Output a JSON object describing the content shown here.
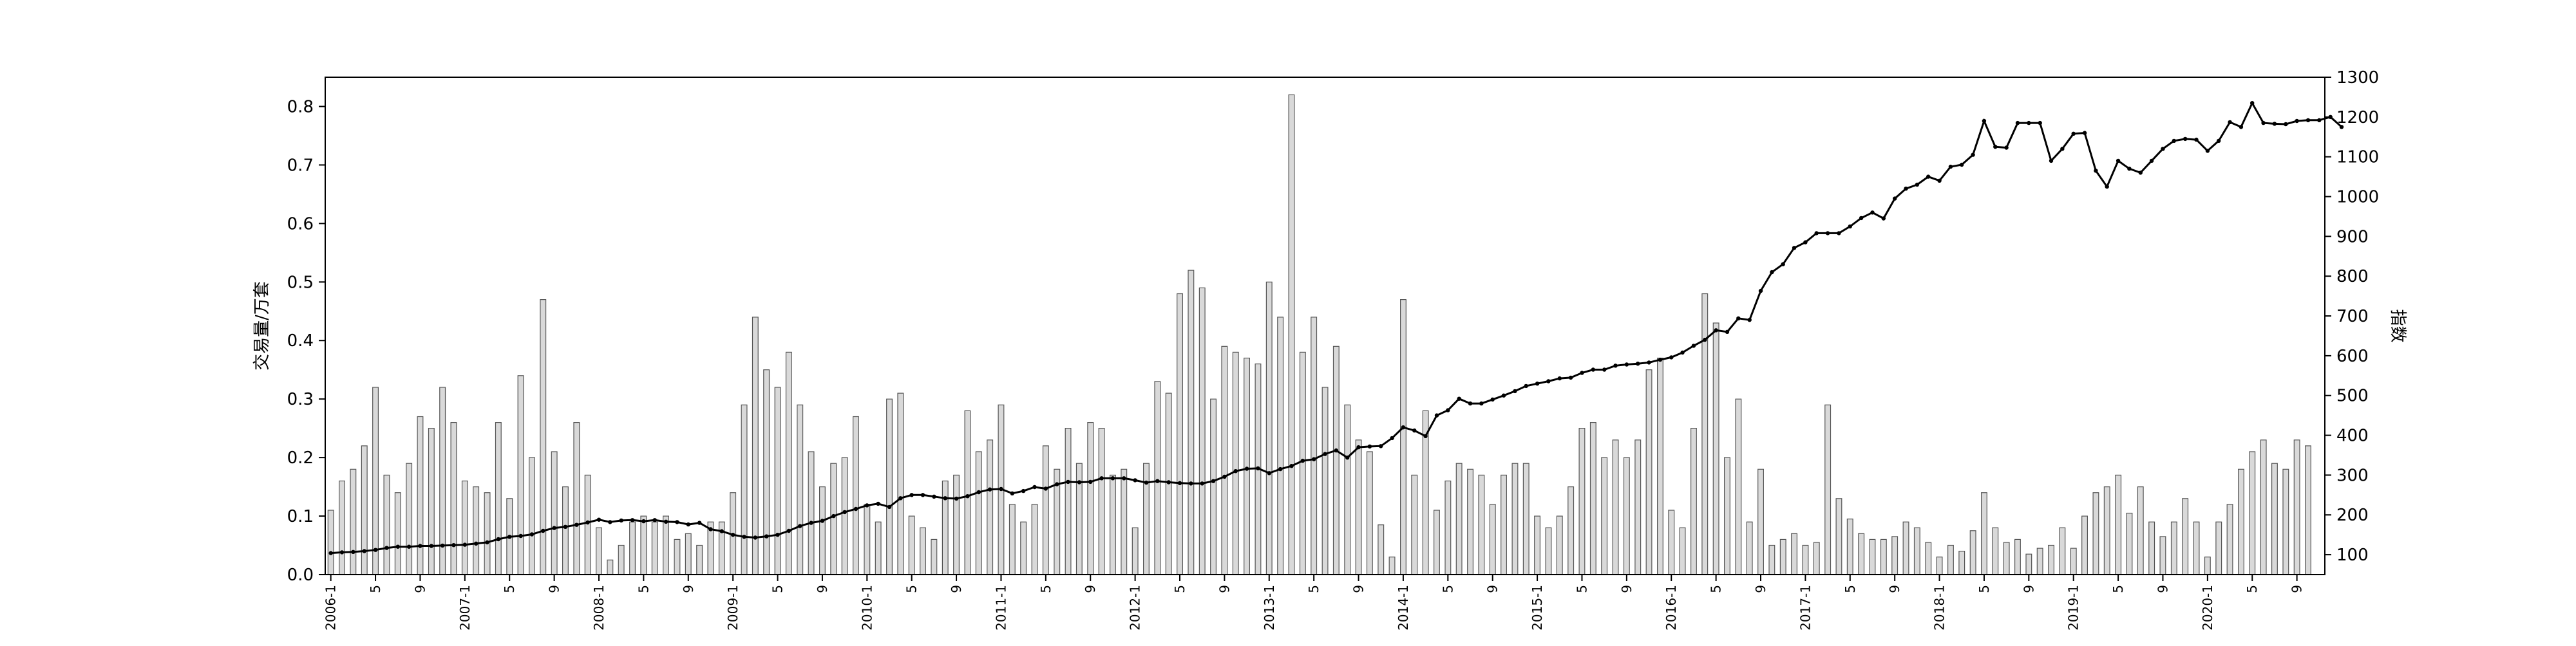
{
  "chart_data": {
    "type": "bar",
    "title": "",
    "ylabel_left": "交易量/万套",
    "ylabel_right": "指数",
    "ylim_left": [
      0,
      0.85
    ],
    "ylim_right": [
      50,
      1300
    ],
    "yticks_left": [
      "0.0",
      "0.1",
      "0.2",
      "0.3",
      "0.4",
      "0.5",
      "0.6",
      "0.7",
      "0.8"
    ],
    "yticks_right": [
      "100",
      "200",
      "300",
      "400",
      "500",
      "600",
      "700",
      "800",
      "900",
      "1000",
      "1100",
      "1200",
      "1300"
    ],
    "years": [
      "2006",
      "2007",
      "2008",
      "2009",
      "2010",
      "2011",
      "2012",
      "2013",
      "2014",
      "2015",
      "2016",
      "2017",
      "2018",
      "2019",
      "2020"
    ],
    "month_ticks": [
      "1",
      "5",
      "9"
    ],
    "series": [
      {
        "kind": "bar",
        "axis": "left",
        "values": [
          0.11,
          0.16,
          0.18,
          0.22,
          0.32,
          0.17,
          0.14,
          0.19,
          0.27,
          0.25,
          0.32,
          0.26,
          0.16,
          0.15,
          0.14,
          0.26,
          0.13,
          0.34,
          0.2,
          0.47,
          0.21,
          0.15,
          0.26,
          0.17,
          0.08,
          0.025,
          0.05,
          0.09,
          0.1,
          0.09,
          0.1,
          0.06,
          0.07,
          0.05,
          0.09,
          0.09,
          0.14,
          0.29,
          0.44,
          0.35,
          0.32,
          0.38,
          0.29,
          0.21,
          0.15,
          0.19,
          0.2,
          0.27,
          0.12,
          0.09,
          0.3,
          0.31,
          0.1,
          0.08,
          0.06,
          0.16,
          0.17,
          0.28,
          0.21,
          0.23,
          0.29,
          0.12,
          0.09,
          0.12,
          0.22,
          0.18,
          0.25,
          0.19,
          0.26,
          0.25,
          0.17,
          0.18,
          0.08,
          0.19,
          0.33,
          0.31,
          0.48,
          0.52,
          0.49,
          0.3,
          0.39,
          0.38,
          0.37,
          0.36,
          0.5,
          0.44,
          0.82,
          0.38,
          0.44,
          0.32,
          0.39,
          0.29,
          0.23,
          0.21,
          0.085,
          0.03,
          0.47,
          0.17,
          0.28,
          0.11,
          0.16,
          0.19,
          0.18,
          0.17,
          0.12,
          0.17,
          0.19,
          0.19,
          0.1,
          0.08,
          0.1,
          0.15,
          0.25,
          0.26,
          0.2,
          0.23,
          0.2,
          0.23,
          0.35,
          0.37,
          0.11,
          0.08,
          0.25,
          0.48,
          0.43,
          0.2,
          0.3,
          0.09,
          0.18,
          0.05,
          0.06,
          0.07,
          0.05,
          0.055,
          0.29,
          0.13,
          0.095,
          0.07,
          0.06,
          0.06,
          0.065,
          0.09,
          0.08,
          0.055,
          0.03,
          0.05,
          0.04,
          0.075,
          0.14,
          0.08,
          0.055,
          0.06,
          0.035,
          0.045,
          0.05,
          0.08,
          0.045,
          0.1,
          0.14,
          0.15,
          0.17,
          0.105,
          0.15,
          0.09,
          0.065,
          0.09,
          0.13,
          0.09,
          0.03,
          0.09,
          0.12,
          0.18,
          0.21,
          0.23,
          0.19,
          0.18,
          0.23,
          0.22
        ]
      },
      {
        "kind": "line",
        "axis": "right",
        "values": [
          104,
          106,
          107,
          109,
          112,
          117,
          120,
          120,
          122,
          122,
          123,
          124,
          125,
          128,
          131,
          139,
          145,
          147,
          151,
          160,
          167,
          170,
          175,
          181,
          188,
          182,
          186,
          187,
          184,
          187,
          183,
          182,
          176,
          180,
          164,
          159,
          150,
          145,
          143,
          146,
          150,
          160,
          172,
          180,
          185,
          197,
          207,
          215,
          224,
          228,
          220,
          242,
          250,
          250,
          246,
          242,
          241,
          247,
          257,
          264,
          265,
          254,
          260,
          270,
          266,
          277,
          283,
          282,
          283,
          292,
          292,
          292,
          287,
          281,
          285,
          282,
          280,
          279,
          279,
          285,
          296,
          310,
          316,
          317,
          305,
          315,
          323,
          336,
          340,
          353,
          362,
          344,
          370,
          372,
          373,
          393,
          420,
          412,
          398,
          450,
          463,
          492,
          480,
          480,
          490,
          500,
          511,
          524,
          530,
          536,
          543,
          545,
          557,
          565,
          565,
          575,
          578,
          580,
          583,
          590,
          596,
          608,
          625,
          640,
          664,
          660,
          694,
          690,
          763,
          810,
          830,
          871,
          885,
          908,
          908,
          908,
          925,
          946,
          960,
          945,
          995,
          1020,
          1030,
          1050,
          1040,
          1075,
          1080,
          1105,
          1190,
          1125,
          1123,
          1185,
          1185,
          1185,
          1090,
          1120,
          1158,
          1160,
          1065,
          1025,
          1090,
          1070,
          1060,
          1090,
          1120,
          1140,
          1145,
          1143,
          1115,
          1140,
          1187,
          1175,
          1235,
          1185,
          1183,
          1182,
          1190,
          1192,
          1192,
          1200,
          1175
        ]
      }
    ]
  }
}
